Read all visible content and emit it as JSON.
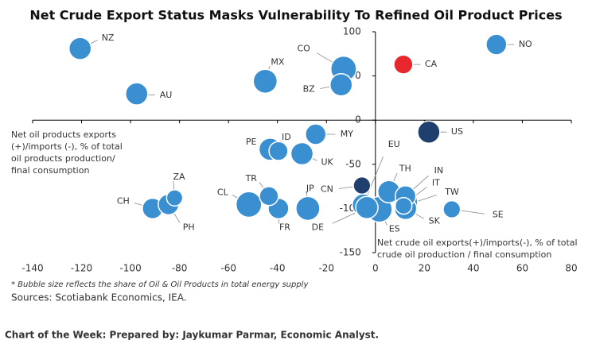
{
  "chart_data": {
    "type": "scatter",
    "title": "Net Crude Export Status Masks Vulnerability To Refined Oil Product Prices",
    "x_label": [
      "Net crude oil exports(+)/imports(-), % of total",
      "crude oil production / final consumption"
    ],
    "y_label": [
      "Net oil products exports",
      "(+)/imports (-), % of total",
      "oil products production/",
      "final consumption"
    ],
    "footnote": "* Bubble size reflects the share of Oil & Oil Products in total energy supply",
    "source": "Sources: Scotiabank Economics, IEA.",
    "credit": "Chart of the Week: Prepared by: Jaykumar Parmar, Economic Analyst.",
    "xlim": [
      -140,
      80
    ],
    "ylim": [
      -150,
      100
    ],
    "xticks": [
      -140,
      -120,
      -100,
      -80,
      -60,
      -40,
      -20,
      0,
      20,
      40,
      60,
      80
    ],
    "yticks": [
      -150,
      -100,
      -50,
      0,
      50,
      100
    ],
    "labels": [
      "NZ",
      "AU",
      "MX",
      "CO",
      "BZ",
      "CA",
      "NO",
      "MY",
      "US",
      "PE",
      "ID",
      "UK",
      "CN",
      "EU",
      "TH",
      "IN",
      "IT",
      "TW",
      "SE",
      "SK",
      "ES",
      "DE",
      "FR",
      "JP",
      "CL",
      "TR",
      "ZA",
      "CH",
      "PH"
    ],
    "x": [
      -120.6,
      -97.5,
      -45,
      -13,
      -14,
      11.4,
      49.4,
      -24.4,
      21.8,
      -43,
      -39.6,
      -30,
      -5.5,
      -4.9,
      5.5,
      12.3,
      12.7,
      11.5,
      31.2,
      12.3,
      1.6,
      -3.5,
      -39.6,
      -27.6,
      -51.7,
      -43.5,
      -82,
      -91,
      -84.5
    ],
    "values": [
      81,
      29.7,
      44,
      58,
      40,
      63,
      85.6,
      -16,
      -13.5,
      -33,
      -35,
      -38,
      -74,
      -96,
      -81,
      -86,
      -93,
      -97,
      -101,
      -100,
      -101,
      -99,
      -100,
      -100,
      -95.5,
      -86,
      -88,
      -100,
      -95.5
    ],
    "sizes": [
      40,
      40,
      43,
      46,
      40,
      34,
      37,
      37,
      40,
      40,
      34,
      40,
      31,
      40,
      40,
      37,
      40,
      30,
      31,
      40,
      46,
      40,
      37,
      43,
      46,
      34,
      29,
      37,
      37
    ],
    "colors": [
      "#3a8fd1",
      "#3a8fd1",
      "#3a8fd1",
      "#3a8fd1",
      "#3a8fd1",
      "#e8272d",
      "#3a8fd1",
      "#3a8fd1",
      "#1f3f6e",
      "#3a8fd1",
      "#3a8fd1",
      "#3a8fd1",
      "#1f3f6e",
      "#3a8fd1",
      "#3a8fd1",
      "#3a8fd1",
      "#3a8fd1",
      "#3a8fd1",
      "#3a8fd1",
      "#3a8fd1",
      "#3a8fd1",
      "#3a8fd1",
      "#3a8fd1",
      "#3a8fd1",
      "#3a8fd1",
      "#3a8fd1",
      "#3a8fd1",
      "#3a8fd1",
      "#3a8fd1"
    ]
  }
}
